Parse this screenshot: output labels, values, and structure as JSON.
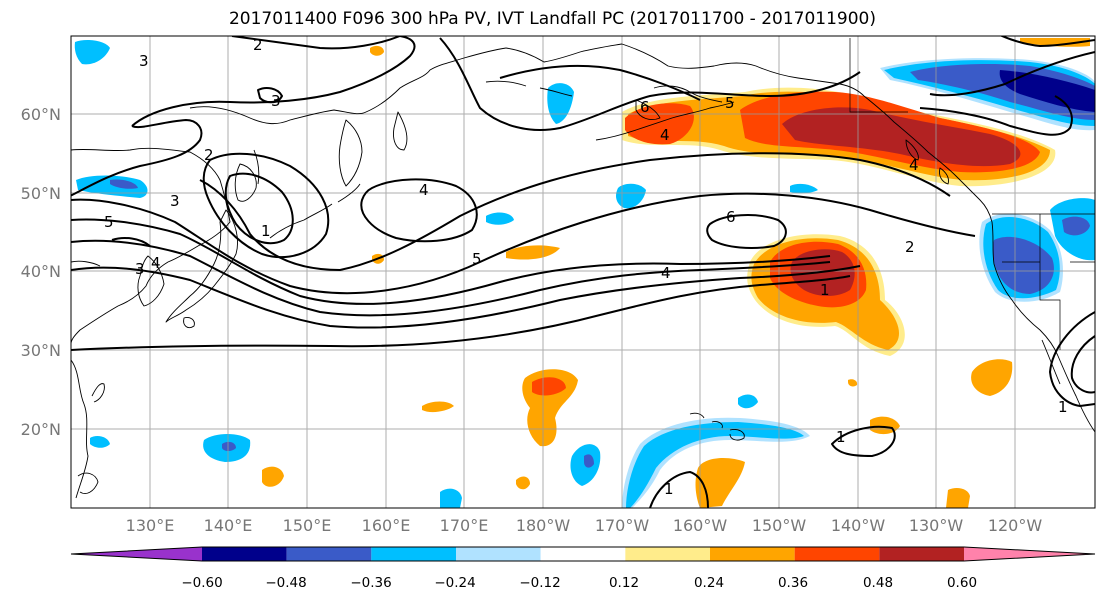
{
  "title": "2017011400 F096 300 hPa PV, IVT Landfall PC (2017011700 - 2017011900)",
  "map": {
    "lat_labels": [
      "60°N",
      "50°N",
      "40°N",
      "30°N",
      "20°N"
    ],
    "lon_labels": [
      "130°E",
      "140°E",
      "150°E",
      "160°E",
      "170°E",
      "180°W",
      "170°W",
      "160°W",
      "150°W",
      "140°W",
      "130°W",
      "120°W"
    ],
    "land_color": "#ffffff",
    "coast_color": "#000000",
    "grid_color": "#999999"
  },
  "contour_labels": [
    "2",
    "3",
    "3",
    "2",
    "1",
    "3",
    "5",
    "3",
    "4",
    "4",
    "5",
    "4",
    "6",
    "5",
    "6",
    "4",
    "2",
    "1",
    "1",
    "1",
    "1",
    "4"
  ],
  "colorbar": {
    "colors": [
      "#9932cc",
      "#00008b",
      "#3a5bc8",
      "#00bfff",
      "#b0e2ff",
      "#ffffff",
      "#ffec8b",
      "#ffa500",
      "#ff4500",
      "#b22222",
      "#ff82ab"
    ],
    "tick_labels": [
      "−0.60",
      "−0.48",
      "−0.36",
      "−0.24",
      "−0.12",
      "0.12",
      "0.24",
      "0.36",
      "0.48",
      "0.60"
    ]
  }
}
